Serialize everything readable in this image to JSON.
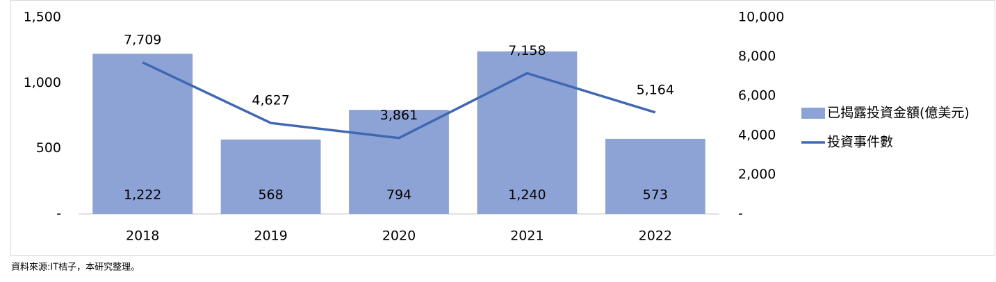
{
  "chart_data": {
    "type": "bar",
    "categories": [
      "2018",
      "2019",
      "2020",
      "2021",
      "2022"
    ],
    "series": [
      {
        "name": "已揭露投資金額(億美元)",
        "type": "bar",
        "color": "#8ea3d5",
        "values": [
          1222,
          568,
          794,
          1240,
          573
        ],
        "value_labels": [
          "1,222",
          "568",
          "794",
          "1,240",
          "573"
        ]
      },
      {
        "name": "投資事件數",
        "type": "line",
        "axis": "y2",
        "color": "#4068b2",
        "values": [
          7709,
          4627,
          3861,
          7158,
          5164
        ],
        "value_labels": [
          "7,709",
          "4,627",
          "3,861",
          "7,158",
          "5,164"
        ]
      }
    ],
    "ylim": [
      0,
      1500
    ],
    "yticks": [
      {
        "value": 0,
        "label": "-"
      },
      500,
      {
        "value": 1000,
        "label": "1,000"
      },
      {
        "value": 1500,
        "label": "1,500"
      }
    ],
    "y2lim": [
      0,
      10000
    ],
    "y2ticks": [
      {
        "value": 0,
        "label": "-"
      },
      {
        "value": 2000,
        "label": "2,000"
      },
      {
        "value": 4000,
        "label": "4,000"
      },
      {
        "value": 6000,
        "label": "6,000"
      },
      {
        "value": 8000,
        "label": "8,000"
      },
      {
        "value": 10000,
        "label": "10,000"
      }
    ],
    "legend": "right",
    "source": "資料來源:IT桔子，本研究整理。"
  }
}
